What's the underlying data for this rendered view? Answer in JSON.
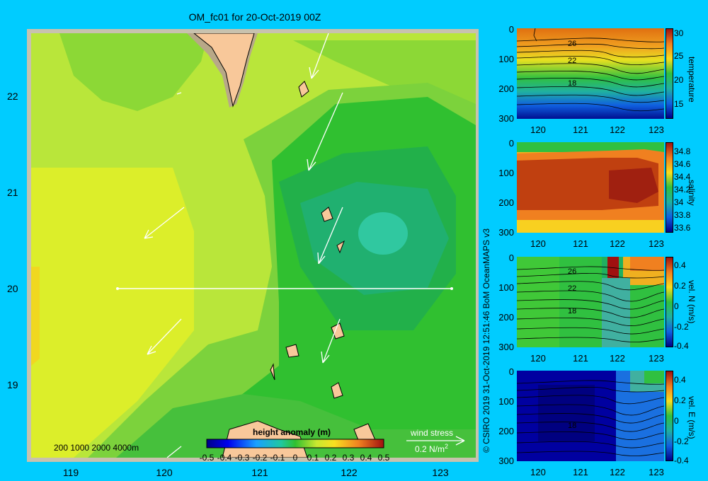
{
  "title": "OM_fc01 for 20-Oct-2019 00Z",
  "map": {
    "y_ticks": [
      "22",
      "21",
      "20",
      "19"
    ],
    "x_ticks": [
      "119",
      "120",
      "121",
      "122",
      "123"
    ],
    "bathymetry_label": "200  1000  2000  4000m",
    "colorbar_title": "height anomaly (m)",
    "colorbar_ticks": [
      "-0.5",
      "-0.4",
      "-0.3",
      "-0.2",
      "-0.1",
      "0",
      "0.1",
      "0.2",
      "0.3",
      "0.4",
      "0.5"
    ],
    "wind_stress_label": "wind stress",
    "wind_stress_value": "0.2 N/m",
    "wind_stress_exp": "2"
  },
  "credit": "© CSIRO 2019   31-Oct-2019 12:51:46 BoM OceanMAPS v3",
  "panels": [
    {
      "y_ticks": [
        "0",
        "100",
        "200",
        "300"
      ],
      "x_ticks": [
        "120",
        "121",
        "122",
        "123"
      ],
      "cbar_ticks": [
        "30",
        "25",
        "20",
        "15"
      ],
      "cbar_name": "temperature",
      "contour_labels": [
        "26",
        "22",
        "18"
      ]
    },
    {
      "y_ticks": [
        "0",
        "100",
        "200",
        "300"
      ],
      "x_ticks": [
        "120",
        "121",
        "122",
        "123"
      ],
      "cbar_ticks": [
        "34.8",
        "34.6",
        "34.4",
        "34.2",
        "34",
        "33.8",
        "33.6"
      ],
      "cbar_name": "salinity"
    },
    {
      "y_ticks": [
        "0",
        "100",
        "200",
        "300"
      ],
      "x_ticks": [
        "120",
        "121",
        "122",
        "123"
      ],
      "cbar_ticks": [
        "0.4",
        "0.2",
        "0",
        "-0.2",
        "-0.4"
      ],
      "cbar_name": "vel. N (m/s)",
      "contour_labels": [
        "26",
        "22",
        "18"
      ]
    },
    {
      "y_ticks": [
        "0",
        "100",
        "200",
        "300"
      ],
      "x_ticks": [
        "120",
        "121",
        "122",
        "123"
      ],
      "cbar_ticks": [
        "0.4",
        "0.2",
        "0",
        "-0.2",
        "-0.4"
      ],
      "cbar_name": "vel. E (m/s)",
      "contour_labels": [
        "18"
      ]
    }
  ]
}
